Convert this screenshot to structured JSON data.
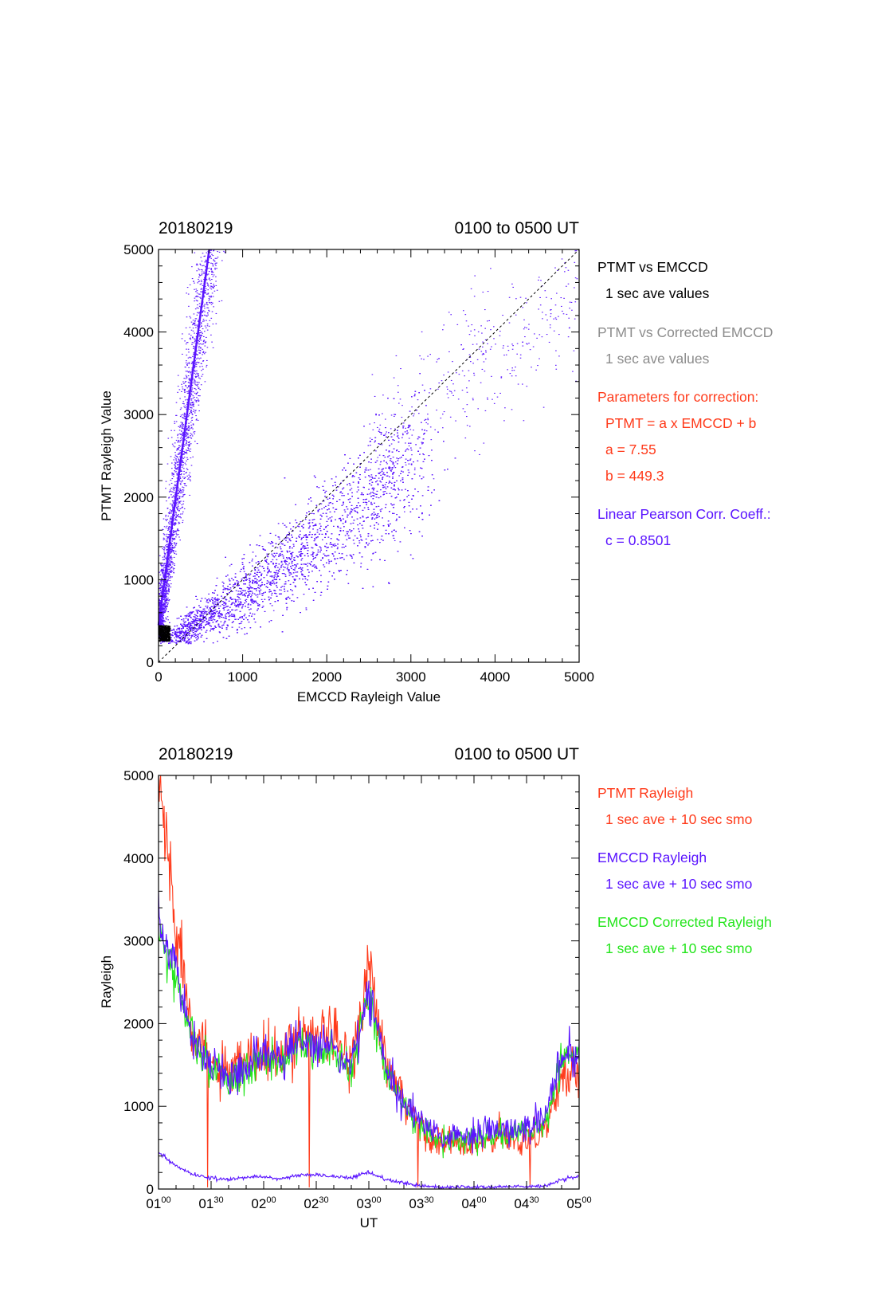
{
  "colors": {
    "purple": "#5a14ff",
    "red": "#ff3a1a",
    "green": "#22e51a",
    "gray": "#8c8c8c",
    "black": "#000000"
  },
  "top": {
    "date": "20180219",
    "range": "0100 to 0500 UT",
    "xlabel": "EMCCD Rayleigh Value",
    "ylabel": "PTMT Rayleigh Value",
    "legend": {
      "l1": "PTMT vs EMCCD",
      "l2": "1 sec ave values",
      "l3": "PTMT vs Corrected EMCCD",
      "l4": "1 sec ave values",
      "l5": "Parameters for correction:",
      "l6": "PTMT = a x EMCCD + b",
      "l7": "a = 7.55",
      "l8": "b =  449.3",
      "l9": "Linear Pearson Corr. Coeff.:",
      "l10": "c = 0.8501"
    }
  },
  "bottom": {
    "date": "20180219",
    "range": "0100 to 0500 UT",
    "xlabel": "UT",
    "ylabel": "Rayleigh",
    "legend": {
      "l1": "PTMT Rayleigh",
      "l2": "1 sec ave + 10 sec smo",
      "l3": "EMCCD Rayleigh",
      "l4": "1 sec ave + 10 sec smo",
      "l5": "EMCCD Corrected Rayleigh",
      "l6": "1 sec ave + 10 sec smo"
    },
    "xticks": [
      {
        "h": "01",
        "m": "00"
      },
      {
        "h": "01",
        "m": "30"
      },
      {
        "h": "02",
        "m": "00"
      },
      {
        "h": "02",
        "m": "30"
      },
      {
        "h": "03",
        "m": "00"
      },
      {
        "h": "03",
        "m": "30"
      },
      {
        "h": "04",
        "m": "00"
      },
      {
        "h": "04",
        "m": "30"
      },
      {
        "h": "05",
        "m": "00"
      }
    ]
  },
  "chart_data": [
    {
      "type": "scatter",
      "title": "20180219",
      "subtitle": "0100 to 0500 UT",
      "xlabel": "EMCCD Rayleigh Value",
      "ylabel": "PTMT Rayleigh Value",
      "xlim": [
        0,
        5000
      ],
      "ylim": [
        0,
        5000
      ],
      "xticks": [
        0,
        1000,
        2000,
        3000,
        4000,
        5000
      ],
      "yticks": [
        0,
        1000,
        2000,
        3000,
        4000,
        5000
      ],
      "fit_line": {
        "slope": 7.55,
        "intercept": 449.3
      },
      "reference_line": "y = x (dashed)",
      "series": [
        {
          "name": "PTMT vs EMCCD",
          "color": "#5a14ff",
          "clusters": [
            {
              "x": [
                0,
                600
              ],
              "y": [
                300,
                5000
              ],
              "note": "steep branch along fit line"
            },
            {
              "x": [
                200,
                1400
              ],
              "y": [
                250,
                900
              ]
            },
            {
              "x": [
                1000,
                2300
              ],
              "y": [
                900,
                2200
              ]
            },
            {
              "x": [
                1900,
                3300
              ],
              "y": [
                1800,
                3300
              ]
            },
            {
              "x": [
                3000,
                5000
              ],
              "y": [
                3000,
                4900
              ]
            }
          ]
        },
        {
          "name": "PTMT vs Corrected EMCCD",
          "color": "#000000",
          "clusters": [
            {
              "x": [
                0,
                130
              ],
              "y": [
                250,
                450
              ]
            }
          ]
        }
      ]
    },
    {
      "type": "line",
      "title": "20180219",
      "subtitle": "0100 to 0500 UT",
      "xlabel": "UT",
      "ylabel": "Rayleigh",
      "xlim": [
        "01:00",
        "05:00"
      ],
      "ylim": [
        0,
        5000
      ],
      "yticks": [
        0,
        1000,
        2000,
        3000,
        4000,
        5000
      ],
      "x": [
        "01:00",
        "01:10",
        "01:20",
        "01:30",
        "01:40",
        "01:50",
        "02:00",
        "02:10",
        "02:20",
        "02:30",
        "02:40",
        "02:50",
        "03:00",
        "03:10",
        "03:20",
        "03:30",
        "03:40",
        "03:50",
        "04:00",
        "04:10",
        "04:20",
        "04:30",
        "04:40",
        "04:50",
        "05:00"
      ],
      "series": [
        {
          "name": "PTMT Rayleigh",
          "color": "#ff3a1a",
          "values": [
            5000,
            3200,
            1900,
            1500,
            1350,
            1550,
            1600,
            1550,
            1900,
            1900,
            1800,
            1550,
            2700,
            1450,
            1050,
            750,
            550,
            550,
            500,
            600,
            600,
            600,
            700,
            1300,
            1500
          ]
        },
        {
          "name": "EMCCD Rayleigh",
          "color": "#5a14ff",
          "values": [
            3300,
            2650,
            1800,
            1500,
            1350,
            1450,
            1700,
            1550,
            1800,
            1750,
            1700,
            1500,
            2400,
            1450,
            1050,
            800,
            650,
            650,
            650,
            700,
            700,
            750,
            850,
            1550,
            1750
          ]
        },
        {
          "name": "EMCCD Corrected Rayleigh",
          "color": "#22e51a",
          "values": [
            3100,
            2550,
            1750,
            1450,
            1300,
            1400,
            1650,
            1500,
            1750,
            1700,
            1650,
            1450,
            2350,
            1400,
            1000,
            750,
            600,
            600,
            600,
            650,
            650,
            700,
            800,
            1500,
            1700
          ]
        },
        {
          "name": "",
          "color": "#5a14ff",
          "values": [
            450,
            280,
            170,
            130,
            120,
            140,
            150,
            120,
            170,
            170,
            150,
            140,
            200,
            110,
            70,
            40,
            25,
            25,
            25,
            25,
            30,
            30,
            35,
            110,
            160
          ]
        }
      ]
    }
  ]
}
